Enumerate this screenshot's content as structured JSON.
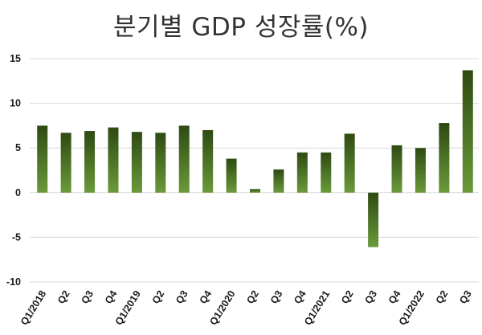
{
  "chart_data": {
    "type": "bar",
    "title": "분기별 GDP 성장률(%)",
    "categories": [
      "Q1/2018",
      "Q2",
      "Q3",
      "Q4",
      "Q1/2019",
      "Q2",
      "Q3",
      "Q4",
      "Q1/2020",
      "Q2",
      "Q3",
      "Q4",
      "Q1/2021",
      "Q2",
      "Q3",
      "Q4",
      "Q1/2022",
      "Q2",
      "Q3"
    ],
    "values": [
      7.5,
      6.7,
      6.9,
      7.3,
      6.8,
      6.7,
      7.5,
      7.0,
      3.8,
      0.4,
      2.6,
      4.5,
      4.5,
      6.6,
      -6.1,
      5.3,
      5.0,
      7.8,
      13.7
    ],
    "xlabel": "",
    "ylabel": "",
    "ylim": [
      -10,
      15
    ],
    "yticks": [
      15,
      10,
      5,
      0,
      -5,
      -10
    ],
    "grid": "horizontal",
    "bar_color_top": "#2e4a12",
    "bar_color_bottom": "#6a9a3a"
  }
}
